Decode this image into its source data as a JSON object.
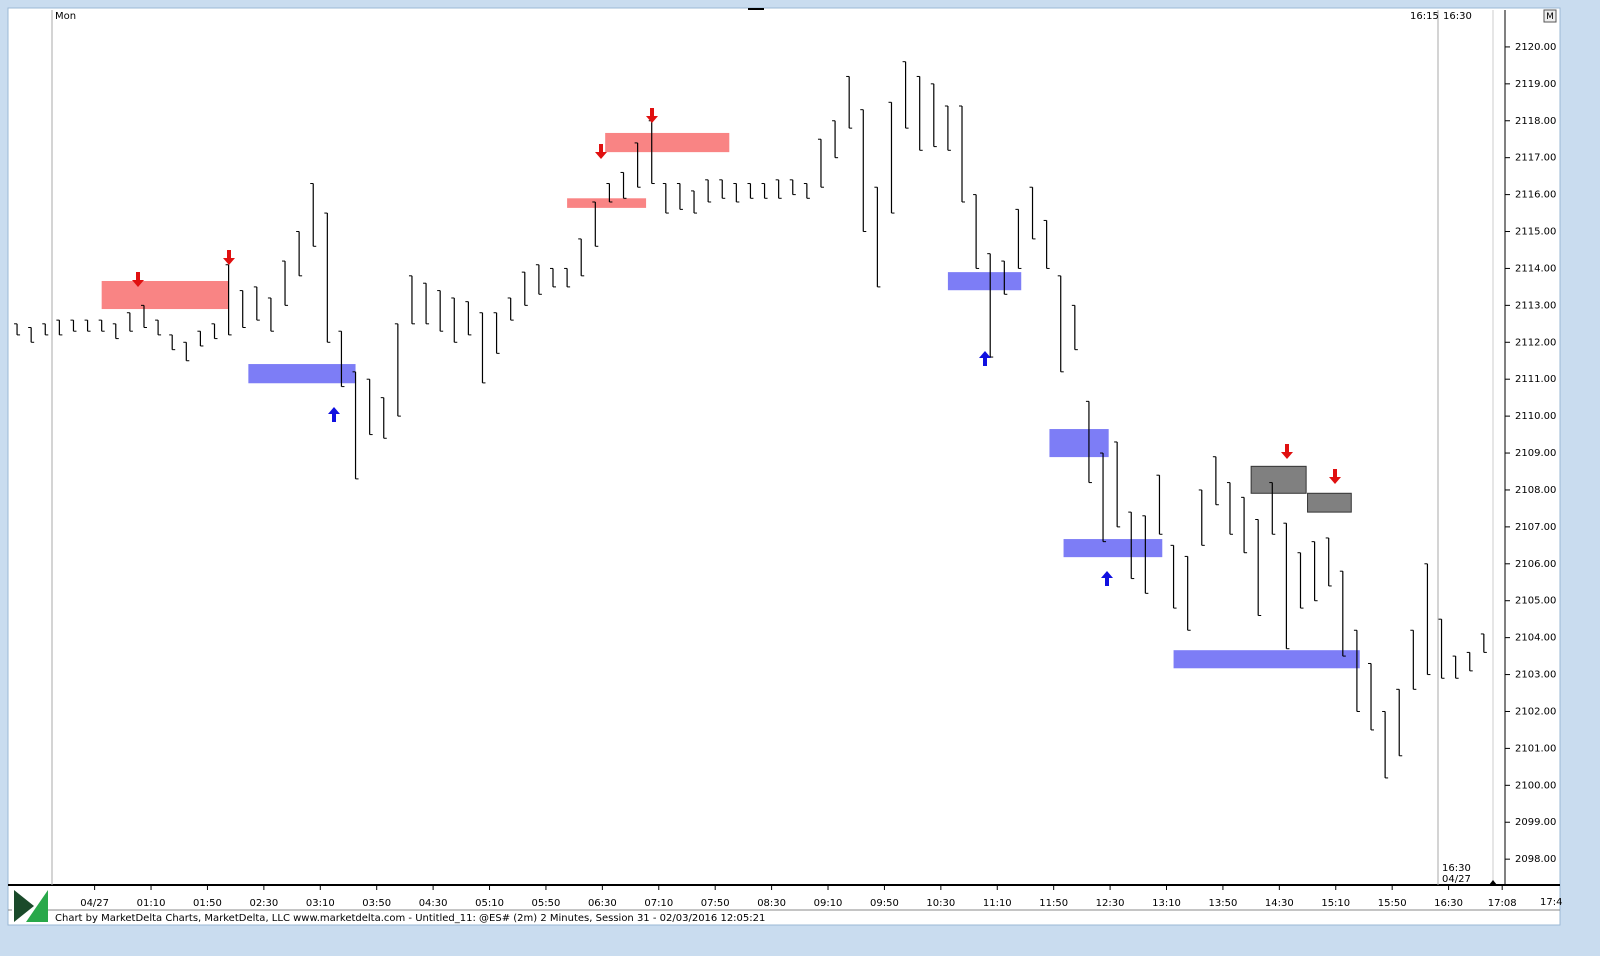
{
  "chart_data": {
    "type": "hl_bar",
    "day_label": "Mon",
    "session_labels": [
      "16:15",
      "16:30"
    ],
    "end_labels": [
      "16:30",
      "04/27"
    ],
    "corner_label": "17:4",
    "button_label": "M",
    "footer": "Chart by MarketDelta Charts, MarketDelta, LLC www.marketdelta.com - Untitled_11: @ES# (2m) 2 Minutes, Session 31 - 02/03/2016 12:05:21",
    "color": "#000000",
    "xlim": [
      -30,
      1030
    ],
    "ylim": [
      2097.3,
      2121.0
    ],
    "xticks": [
      {
        "value": 30,
        "label": "04/27"
      },
      {
        "value": 70,
        "label": "01:10"
      },
      {
        "value": 110,
        "label": "01:50"
      },
      {
        "value": 150,
        "label": "02:30"
      },
      {
        "value": 190,
        "label": "03:10"
      },
      {
        "value": 230,
        "label": "03:50"
      },
      {
        "value": 270,
        "label": "04:30"
      },
      {
        "value": 310,
        "label": "05:10"
      },
      {
        "value": 350,
        "label": "05:50"
      },
      {
        "value": 390,
        "label": "06:30"
      },
      {
        "value": 430,
        "label": "07:10"
      },
      {
        "value": 470,
        "label": "07:50"
      },
      {
        "value": 510,
        "label": "08:30"
      },
      {
        "value": 550,
        "label": "09:10"
      },
      {
        "value": 590,
        "label": "09:50"
      },
      {
        "value": 630,
        "label": "10:30"
      },
      {
        "value": 670,
        "label": "11:10"
      },
      {
        "value": 710,
        "label": "11:50"
      },
      {
        "value": 750,
        "label": "12:30"
      },
      {
        "value": 790,
        "label": "13:10"
      },
      {
        "value": 830,
        "label": "13:50"
      },
      {
        "value": 870,
        "label": "14:30"
      },
      {
        "value": 910,
        "label": "15:10"
      },
      {
        "value": 950,
        "label": "15:50"
      },
      {
        "value": 990,
        "label": "16:30"
      },
      {
        "value": 1028,
        "label": "17:08"
      }
    ],
    "yticks": [
      {
        "value": 2098,
        "label": "2098.00"
      },
      {
        "value": 2099,
        "label": "2099.00"
      },
      {
        "value": 2100,
        "label": "2100.00"
      },
      {
        "value": 2101,
        "label": "2101.00"
      },
      {
        "value": 2102,
        "label": "2102.00"
      },
      {
        "value": 2103,
        "label": "2103.00"
      },
      {
        "value": 2104,
        "label": "2104.00"
      },
      {
        "value": 2105,
        "label": "2105.00"
      },
      {
        "value": 2106,
        "label": "2106.00"
      },
      {
        "value": 2107,
        "label": "2107.00"
      },
      {
        "value": 2108,
        "label": "2108.00"
      },
      {
        "value": 2109,
        "label": "2109.00"
      },
      {
        "value": 2110,
        "label": "2110.00"
      },
      {
        "value": 2111,
        "label": "2111.00"
      },
      {
        "value": 2112,
        "label": "2112.00"
      },
      {
        "value": 2113,
        "label": "2113.00"
      },
      {
        "value": 2114,
        "label": "2114.00"
      },
      {
        "value": 2115,
        "label": "2115.00"
      },
      {
        "value": 2116,
        "label": "2116.00"
      },
      {
        "value": 2117,
        "label": "2117.00"
      },
      {
        "value": 2118,
        "label": "2118.00"
      },
      {
        "value": 2119,
        "label": "2119.00"
      },
      {
        "value": 2120,
        "label": "2120.00"
      }
    ],
    "x": [
      -25,
      -15,
      -5,
      5,
      15,
      25,
      35,
      45,
      55,
      65,
      75,
      85,
      95,
      105,
      115,
      125,
      135,
      145,
      155,
      165,
      175,
      185,
      195,
      205,
      215,
      225,
      235,
      245,
      255,
      265,
      275,
      285,
      295,
      305,
      315,
      325,
      335,
      345,
      355,
      365,
      375,
      385,
      395,
      405,
      415,
      425,
      435,
      445,
      455,
      465,
      475,
      485,
      495,
      505,
      515,
      525,
      535,
      545,
      555,
      565,
      575,
      585,
      595,
      605,
      615,
      625,
      635,
      645,
      655,
      665,
      675,
      685,
      695,
      705,
      715,
      725,
      735,
      745,
      755,
      765,
      775,
      785,
      795,
      805,
      815,
      825,
      835,
      845,
      855,
      865,
      875,
      885,
      895,
      905,
      915,
      925,
      935,
      945,
      955,
      965,
      975,
      985,
      995,
      1005,
      1015
    ],
    "high": [
      2112.5,
      2112.4,
      2112.5,
      2112.6,
      2112.6,
      2112.6,
      2112.6,
      2112.5,
      2112.8,
      2113.0,
      2112.6,
      2112.2,
      2112.0,
      2112.3,
      2112.5,
      2114.1,
      2113.4,
      2113.5,
      2113.2,
      2114.2,
      2115.0,
      2116.3,
      2115.5,
      2112.3,
      2111.2,
      2111.0,
      2110.5,
      2112.5,
      2113.8,
      2113.6,
      2113.4,
      2113.2,
      2113.1,
      2112.8,
      2112.8,
      2113.2,
      2113.9,
      2114.1,
      2114.0,
      2114.0,
      2114.8,
      2115.8,
      2116.3,
      2116.6,
      2117.4,
      2118.0,
      2116.3,
      2116.3,
      2116.1,
      2116.4,
      2116.4,
      2116.3,
      2116.3,
      2116.3,
      2116.4,
      2116.4,
      2116.3,
      2117.5,
      2118.0,
      2119.2,
      2118.3,
      2116.2,
      2118.5,
      2119.6,
      2119.2,
      2119.0,
      2118.4,
      2118.4,
      2116.0,
      2114.4,
      2114.2,
      2115.6,
      2116.2,
      2115.3,
      2113.8,
      2113.0,
      2110.4,
      2109.0,
      2109.3,
      2107.4,
      2107.3,
      2108.4,
      2106.5,
      2106.2,
      2108.0,
      2108.9,
      2108.2,
      2107.8,
      2107.2,
      2108.2,
      2107.1,
      2106.3,
      2106.6,
      2106.7,
      2105.8,
      2104.2,
      2103.3,
      2102.0,
      2102.6,
      2104.2,
      2106.0,
      2104.5,
      2103.5,
      2103.6,
      2104.1
    ],
    "low": [
      2112.2,
      2112.0,
      2112.2,
      2112.2,
      2112.3,
      2112.3,
      2112.3,
      2112.1,
      2112.3,
      2112.4,
      2112.2,
      2111.8,
      2111.5,
      2111.9,
      2112.1,
      2112.2,
      2112.4,
      2112.6,
      2112.3,
      2113.0,
      2113.8,
      2114.6,
      2112.0,
      2110.8,
      2108.3,
      2109.5,
      2109.4,
      2110.0,
      2112.5,
      2112.5,
      2112.3,
      2112.0,
      2112.2,
      2110.9,
      2111.7,
      2112.6,
      2113.0,
      2113.3,
      2113.5,
      2113.5,
      2113.8,
      2114.6,
      2115.8,
      2115.9,
      2116.2,
      2116.3,
      2115.5,
      2115.6,
      2115.5,
      2115.8,
      2115.9,
      2115.8,
      2115.9,
      2115.9,
      2115.9,
      2116.0,
      2115.9,
      2116.2,
      2117.0,
      2117.8,
      2115.0,
      2113.5,
      2115.5,
      2117.8,
      2117.2,
      2117.3,
      2117.2,
      2115.8,
      2114.0,
      2111.6,
      2113.3,
      2114.0,
      2114.8,
      2114.0,
      2111.2,
      2111.8,
      2108.2,
      2106.6,
      2107.0,
      2105.6,
      2105.2,
      2106.8,
      2104.8,
      2104.2,
      2106.5,
      2107.6,
      2106.8,
      2106.3,
      2104.6,
      2106.8,
      2103.7,
      2104.8,
      2105.0,
      2105.4,
      2103.5,
      2102.0,
      2101.5,
      2100.2,
      2100.8,
      2102.6,
      2103.0,
      2102.9,
      2102.9,
      2103.1,
      2103.6
    ],
    "zones": [
      {
        "low": 2112.9,
        "high": 2113.66,
        "start": 35,
        "end": 125,
        "color": "#f98484"
      },
      {
        "low": 2115.64,
        "high": 2115.9,
        "start": 365,
        "end": 421,
        "color": "#f98484"
      },
      {
        "low": 2117.15,
        "high": 2117.67,
        "start": 392,
        "end": 480,
        "color": "#f98484"
      },
      {
        "low": 2110.89,
        "high": 2111.41,
        "start": 139,
        "end": 215,
        "color": "#7d7df6"
      },
      {
        "low": 2113.41,
        "high": 2113.9,
        "start": 635,
        "end": 687,
        "color": "#7d7df6"
      },
      {
        "low": 2108.89,
        "high": 2109.65,
        "start": 707,
        "end": 749,
        "color": "#7d7df6"
      },
      {
        "low": 2106.18,
        "high": 2106.67,
        "start": 717,
        "end": 787,
        "color": "#7d7df6"
      },
      {
        "low": 2103.17,
        "high": 2103.66,
        "start": 795,
        "end": 927,
        "color": "#7d7df6"
      },
      {
        "low": 2107.91,
        "high": 2108.64,
        "start": 850,
        "end": 889,
        "color": "#808080"
      },
      {
        "low": 2107.4,
        "high": 2107.91,
        "start": 890,
        "end": 921,
        "color": "#808080"
      }
    ]
  }
}
